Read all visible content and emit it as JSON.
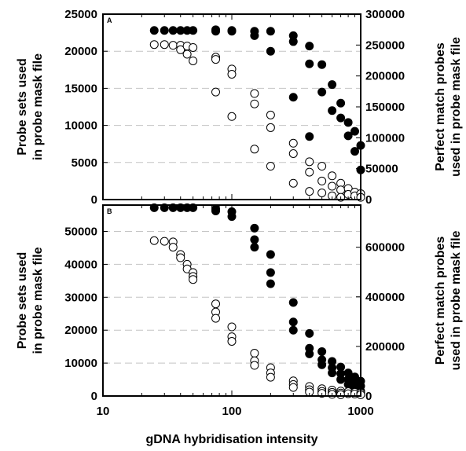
{
  "xlabel": "gDNA hybridisation intensity",
  "x_ticks": [
    "10",
    "100",
    "1000"
  ],
  "chart_data": [
    {
      "type": "scatter",
      "panel": "A",
      "xscale": "log",
      "xlim": [
        10,
        1000
      ],
      "ylabel_left": "Probe sets used\nin probe mask file",
      "ylabel_right": "Perfect match probes\nused in probe mask file",
      "ylim_left": [
        0,
        25000
      ],
      "ylim_right": [
        0,
        300000
      ],
      "yticks_left": [
        "0",
        "5000",
        "10000",
        "15000",
        "20000",
        "25000"
      ],
      "yticks_right": [
        "0",
        "50000",
        "100000",
        "150000",
        "200000",
        "250000",
        "300000"
      ],
      "grid": "horizontal dashed",
      "series": [
        {
          "marker": "filled-circle",
          "axis": "left",
          "x": [
            25,
            30,
            35,
            40,
            45,
            50,
            75,
            75,
            100,
            100,
            150,
            150,
            200,
            200,
            300,
            300,
            300,
            400,
            400,
            400,
            500,
            500,
            600,
            600,
            700,
            700,
            800,
            800,
            900,
            900,
            1000,
            1000
          ],
          "y": [
            22800,
            22800,
            22800,
            22800,
            22800,
            22800,
            22900,
            22700,
            22800,
            22700,
            22700,
            22100,
            22700,
            20000,
            22100,
            21300,
            13800,
            20700,
            18300,
            8500,
            18200,
            14500,
            15500,
            12000,
            13000,
            11000,
            10400,
            8600,
            9200,
            6500,
            7300,
            4000
          ]
        },
        {
          "marker": "open-circle",
          "axis": "left",
          "x": [
            25,
            30,
            35,
            40,
            40,
            45,
            45,
            50,
            50,
            75,
            75,
            75,
            100,
            100,
            100,
            150,
            150,
            150,
            200,
            200,
            200,
            300,
            300,
            300,
            400,
            400,
            400,
            500,
            500,
            500,
            600,
            600,
            600,
            700,
            700,
            700,
            800,
            800,
            900,
            900,
            1000,
            1000
          ],
          "y": [
            20900,
            20900,
            20800,
            20800,
            20200,
            20700,
            19600,
            20500,
            18700,
            19200,
            18900,
            14500,
            17600,
            16900,
            11200,
            14300,
            12900,
            6800,
            11400,
            9700,
            4500,
            7600,
            6200,
            2200,
            5100,
            3700,
            1100,
            4500,
            2500,
            900,
            3200,
            1800,
            500,
            2200,
            1300,
            300,
            1500,
            700,
            1000,
            500,
            800,
            300
          ]
        }
      ]
    },
    {
      "type": "scatter",
      "panel": "B",
      "xscale": "log",
      "xlim": [
        10,
        1000
      ],
      "ylabel_left": "Probe sets used\nin probe mask file",
      "ylabel_right": "Perfect match probes\nused in probe mask file",
      "ylim_left": [
        0,
        58000
      ],
      "ylim_right": [
        0,
        770000
      ],
      "yticks_left": [
        "0",
        "10000",
        "20000",
        "30000",
        "40000",
        "50000"
      ],
      "yticks_right": [
        "0",
        "200000",
        "400000",
        "600000"
      ],
      "grid": "horizontal dashed",
      "series": [
        {
          "marker": "filled-circle",
          "axis": "left",
          "x": [
            25,
            30,
            35,
            40,
            45,
            50,
            75,
            75,
            100,
            100,
            150,
            150,
            150,
            200,
            200,
            200,
            300,
            300,
            300,
            400,
            400,
            400,
            500,
            500,
            500,
            600,
            600,
            600,
            700,
            700,
            700,
            800,
            800,
            800,
            900,
            900,
            900,
            1000,
            1000,
            1000
          ],
          "y": [
            57200,
            57200,
            57200,
            57200,
            57200,
            57200,
            56800,
            56200,
            56000,
            54500,
            51000,
            47500,
            45200,
            43000,
            37500,
            34100,
            28400,
            22500,
            20000,
            19000,
            14500,
            12800,
            13500,
            11000,
            9500,
            10500,
            8600,
            7000,
            8800,
            6800,
            5000,
            7000,
            5000,
            3500,
            5800,
            4200,
            2500,
            4500,
            3000,
            1500
          ]
        },
        {
          "marker": "open-circle",
          "axis": "left",
          "x": [
            25,
            30,
            35,
            35,
            40,
            40,
            45,
            45,
            50,
            50,
            50,
            75,
            75,
            75,
            100,
            100,
            100,
            150,
            150,
            150,
            200,
            200,
            200,
            300,
            300,
            300,
            400,
            400,
            400,
            500,
            500,
            500,
            600,
            600,
            600,
            700,
            700,
            700,
            800,
            800,
            900,
            900,
            1000,
            1000
          ],
          "y": [
            47200,
            47000,
            46800,
            45200,
            43000,
            42000,
            40000,
            38600,
            37500,
            36300,
            35400,
            28000,
            25500,
            23600,
            21000,
            18000,
            16600,
            13000,
            10700,
            9300,
            8600,
            7000,
            5700,
            4600,
            3500,
            2600,
            2900,
            1900,
            1200,
            2200,
            1400,
            800,
            1800,
            1100,
            500,
            1500,
            900,
            400,
            1300,
            700,
            1100,
            600,
            900,
            400
          ]
        }
      ]
    }
  ]
}
